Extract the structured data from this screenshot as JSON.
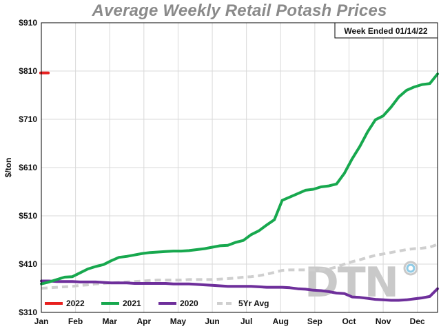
{
  "chart_data": {
    "type": "line",
    "title": "Average Weekly Retail Potash Prices",
    "ylabel": "$/ton",
    "xlabel": "",
    "annotation": "Week Ended 01/14/22",
    "logo_text": "DTN",
    "ylim": [
      310,
      910
    ],
    "xlim": [
      0,
      51
    ],
    "yticks": [
      310,
      410,
      510,
      610,
      710,
      810,
      910
    ],
    "ytick_labels": [
      "$310",
      "$410",
      "$510",
      "$610",
      "$710",
      "$810",
      "$910"
    ],
    "month_labels": [
      "Jan",
      "Feb",
      "Mar",
      "Apr",
      "May",
      "Jun",
      "Jul",
      "Aug",
      "Sep",
      "Oct",
      "Nov",
      "Dec"
    ],
    "month_positions": [
      0,
      4.4,
      8.8,
      13.2,
      17.6,
      22.0,
      26.4,
      30.8,
      35.2,
      39.6,
      44.0,
      48.4
    ],
    "grid": true,
    "legend_position": "bottom",
    "series": [
      {
        "name": "2022",
        "color": "#e8201f",
        "dashed": false,
        "x": [
          -0.1,
          0.9
        ],
        "y": [
          806,
          806
        ]
      },
      {
        "name": "2021",
        "color": "#17a84e",
        "dashed": false,
        "x": [
          0,
          1,
          2,
          3,
          4,
          5,
          6,
          7,
          8,
          9,
          10,
          11,
          12,
          13,
          14,
          15,
          16,
          17,
          18,
          19,
          20,
          21,
          22,
          23,
          24,
          25,
          26,
          27,
          28,
          29,
          30,
          31,
          32,
          33,
          34,
          35,
          36,
          37,
          38,
          39,
          40,
          41,
          42,
          43,
          44,
          45,
          46,
          47,
          48,
          49,
          50,
          51
        ],
        "y": [
          369,
          373,
          378,
          383,
          384,
          392,
          400,
          405,
          409,
          417,
          424,
          426,
          429,
          432,
          434,
          435,
          436,
          437,
          437,
          438,
          440,
          442,
          445,
          448,
          449,
          455,
          459,
          471,
          479,
          491,
          502,
          542,
          549,
          556,
          563,
          565,
          570,
          572,
          576,
          598,
          628,
          654,
          684,
          709,
          717,
          735,
          756,
          770,
          777,
          782,
          784,
          804
        ]
      },
      {
        "name": "2020",
        "color": "#6e2f9b",
        "dashed": false,
        "x": [
          0,
          1,
          2,
          3,
          4,
          5,
          6,
          7,
          8,
          9,
          10,
          11,
          12,
          13,
          14,
          15,
          16,
          17,
          18,
          19,
          20,
          21,
          22,
          23,
          24,
          25,
          26,
          27,
          28,
          29,
          30,
          31,
          32,
          33,
          34,
          35,
          36,
          37,
          38,
          39,
          40,
          41,
          42,
          43,
          44,
          45,
          46,
          47,
          48,
          49,
          50,
          51
        ],
        "y": [
          375,
          375,
          374,
          374,
          374,
          373,
          373,
          373,
          372,
          371,
          371,
          371,
          370,
          370,
          370,
          370,
          370,
          369,
          369,
          369,
          368,
          367,
          366,
          365,
          364,
          364,
          364,
          364,
          363,
          362,
          362,
          362,
          361,
          359,
          358,
          356,
          355,
          353,
          350,
          349,
          342,
          341,
          339,
          337,
          336,
          335,
          335,
          336,
          338,
          340,
          343,
          359
        ]
      },
      {
        "name": "5Yr Avg",
        "color": "#cfcfcf",
        "dashed": true,
        "x": [
          0,
          1,
          2,
          3,
          4,
          5,
          6,
          7,
          8,
          9,
          10,
          11,
          12,
          13,
          14,
          15,
          16,
          17,
          18,
          19,
          20,
          21,
          22,
          23,
          24,
          25,
          26,
          27,
          28,
          29,
          30,
          31,
          32,
          33,
          34,
          35,
          36,
          37,
          38,
          39,
          40,
          41,
          42,
          43,
          44,
          45,
          46,
          47,
          48,
          49,
          50,
          51
        ],
        "y": [
          360,
          361,
          362,
          363,
          364,
          366,
          367,
          369,
          370,
          371,
          372,
          373,
          374,
          375,
          376,
          377,
          377,
          377,
          377,
          378,
          378,
          378,
          378,
          379,
          380,
          381,
          383,
          384,
          386,
          389,
          393,
          397,
          398,
          398,
          398,
          398,
          399,
          400,
          404,
          410,
          415,
          419,
          424,
          428,
          431,
          434,
          437,
          440,
          442,
          443,
          445,
          451
        ]
      }
    ]
  }
}
